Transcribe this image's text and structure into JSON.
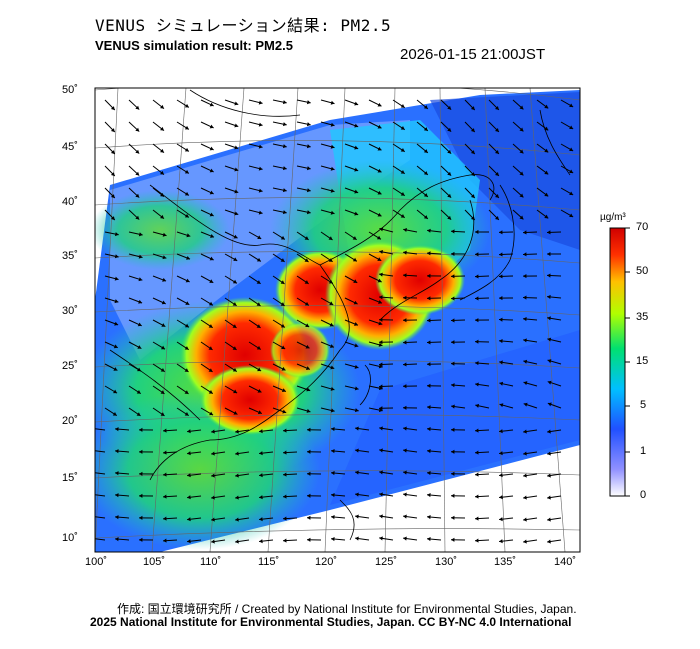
{
  "title_ja": "VENUS シミュレーション結果: PM2.5",
  "title_en": "VENUS simulation result: PM2.5",
  "timestamp": "2026-01-15 21:00JST",
  "lon_ticks": [
    "100˚",
    "105˚",
    "110˚",
    "115˚",
    "120˚",
    "125˚",
    "130˚",
    "135˚",
    "140˚"
  ],
  "lat_ticks": [
    "50˚",
    "45˚",
    "40˚",
    "35˚",
    "30˚",
    "25˚",
    "20˚",
    "15˚",
    "10˚"
  ],
  "colorbar": {
    "unit": "µg/m³",
    "labels": [
      "70",
      "50",
      "35",
      "15",
      "5",
      "1",
      "0"
    ],
    "colors": [
      "#f5f5ff",
      "#3a3aff",
      "#00c8ff",
      "#00e070",
      "#c8ff00",
      "#ffc800",
      "#ff2000",
      "#e00000"
    ]
  },
  "map": {
    "field": "PM2.5 concentration",
    "high_areas": [
      "Southern China",
      "Eastern China coast",
      "Yellow Sea"
    ],
    "arrows": "surface wind vectors"
  },
  "footer": {
    "credit": "作成: 国立環境研究所 / Created by National Institute for Environmental Studies, Japan.",
    "copyright": "2025 National Institute for Environmental Studies, Japan. CC BY-NC 4.0 International"
  }
}
